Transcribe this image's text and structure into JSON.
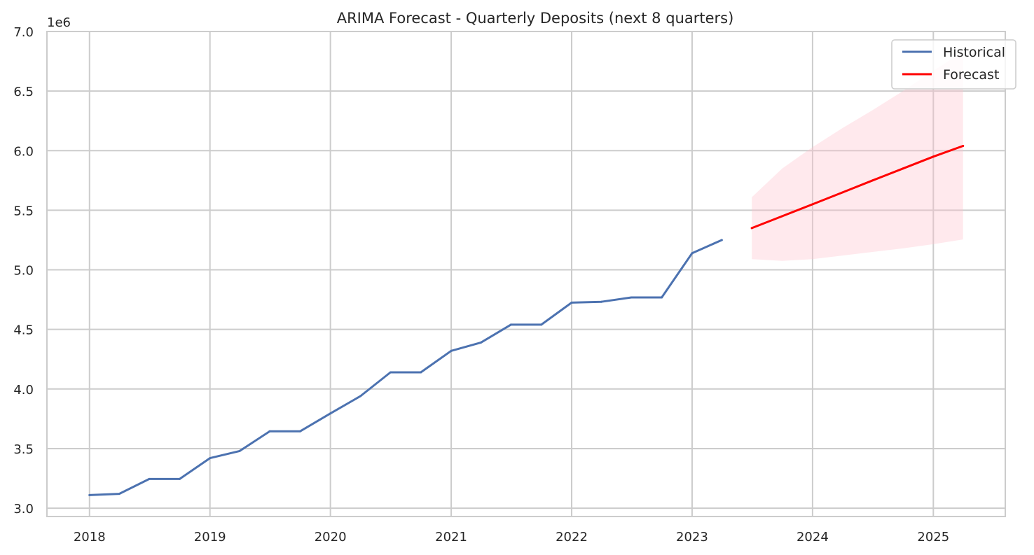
{
  "chart_data": {
    "type": "line",
    "title": "ARIMA Forecast - Quarterly Deposits (next 8 quarters)",
    "xlabel": "",
    "ylabel": "",
    "y_offset_label": "1e6",
    "ylim": [
      2.93,
      7.0
    ],
    "xlim": [
      "2017-08-25",
      "2025-08-07"
    ],
    "x_ticks": [
      "2018",
      "2019",
      "2020",
      "2021",
      "2022",
      "2023",
      "2024",
      "2025"
    ],
    "y_ticks": [
      "3.0",
      "3.5",
      "4.0",
      "4.5",
      "5.0",
      "5.5",
      "6.0",
      "6.5",
      "7.0"
    ],
    "y_scale": 1000000,
    "grid": true,
    "legend_position": "top-right",
    "series": [
      {
        "name": "Historical",
        "color": "#4c72b0",
        "x": [
          "2018-01-01",
          "2018-04-01",
          "2018-07-01",
          "2018-10-01",
          "2019-01-01",
          "2019-04-01",
          "2019-07-01",
          "2019-10-01",
          "2020-01-01",
          "2020-04-01",
          "2020-07-01",
          "2020-10-01",
          "2021-01-01",
          "2021-04-01",
          "2021-07-01",
          "2021-10-01",
          "2022-01-01",
          "2022-04-01",
          "2022-07-01",
          "2022-10-01",
          "2023-01-01",
          "2023-04-01"
        ],
        "values": [
          3110000,
          3120000,
          3245000,
          3245000,
          3420000,
          3480000,
          3645000,
          3645000,
          3795000,
          3940000,
          4140000,
          4140000,
          4320000,
          4390000,
          4540000,
          4540000,
          4725000,
          4732000,
          4768000,
          4768000,
          5140000,
          5250000
        ]
      },
      {
        "name": "Forecast",
        "color": "#ff0000",
        "x": [
          "2023-07-01",
          "2023-10-01",
          "2024-01-01",
          "2024-04-01",
          "2024-07-01",
          "2024-10-01",
          "2025-01-01",
          "2025-04-01"
        ],
        "values": [
          5350000,
          5450000,
          5550000,
          5650000,
          5750000,
          5850000,
          5950000,
          6040000
        ],
        "lower": [
          5090000,
          5075000,
          5090000,
          5120000,
          5150000,
          5180000,
          5215000,
          5255000
        ],
        "upper": [
          5610000,
          5850000,
          6030000,
          6190000,
          6340000,
          6500000,
          6670000,
          6830000
        ]
      }
    ],
    "band_color": "#ffc0cb"
  }
}
